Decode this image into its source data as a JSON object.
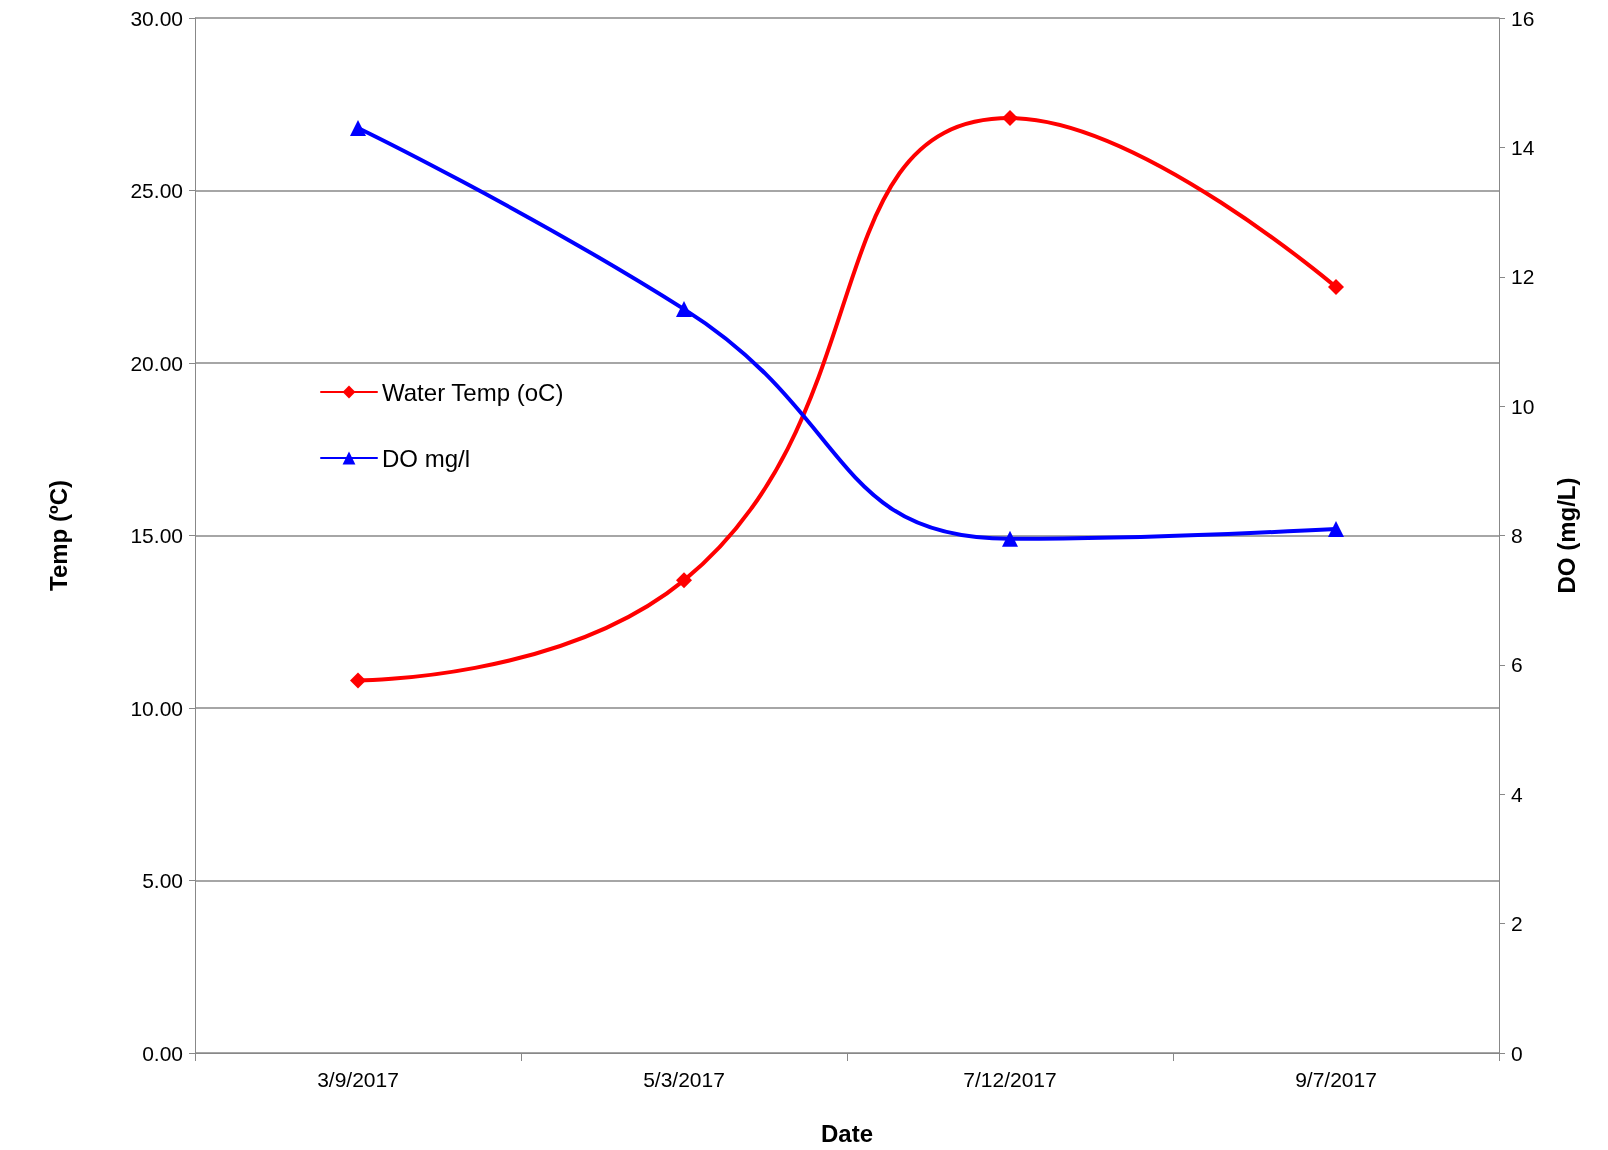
{
  "chart_data": {
    "type": "line",
    "xlabel": "Date",
    "ylabel": "Temp (ºC)",
    "y2label": "DO (mg/L)",
    "categories": [
      "3/9/2017",
      "5/3/2017",
      "7/12/2017",
      "9/7/2017"
    ],
    "series": [
      {
        "name": "Water Temp (oC)",
        "color": "#ff0000",
        "marker": "diamond",
        "values": [
          10.8,
          13.7,
          27.1,
          22.2
        ]
      },
      {
        "name": "DO mg/l",
        "color": "#0000ff",
        "marker": "triangle",
        "axis": "y2",
        "values": [
          14.3,
          11.5,
          7.95,
          8.1
        ]
      }
    ],
    "ylim": [
      0,
      30
    ],
    "yticks": [
      {
        "value": 0,
        "label": "0.00"
      },
      {
        "value": 5,
        "label": "5.00"
      },
      {
        "value": 10,
        "label": "10.00"
      },
      {
        "value": 15,
        "label": "15.00"
      },
      {
        "value": 20,
        "label": "20.00"
      },
      {
        "value": 25,
        "label": "25.00"
      },
      {
        "value": 30,
        "label": "30.00"
      }
    ],
    "y2lim": [
      0,
      16
    ],
    "y2ticks": [
      0,
      2,
      4,
      6,
      8,
      10,
      12,
      14,
      16
    ],
    "grid": "y",
    "legend": "left",
    "line_style": "solid"
  }
}
